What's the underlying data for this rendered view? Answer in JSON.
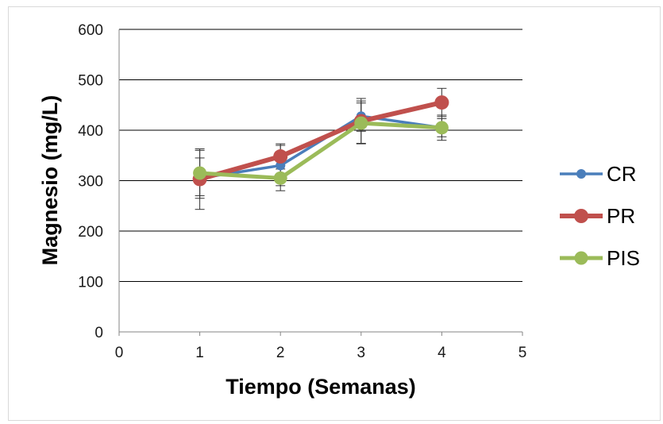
{
  "chart_data": {
    "type": "line",
    "title": "",
    "xlabel": "Tiempo (Semanas)",
    "ylabel": "Magnesio (mg/L)",
    "xlim": [
      0,
      5
    ],
    "ylim": [
      0,
      600
    ],
    "x_ticks": [
      "0",
      "1",
      "2",
      "3",
      "4",
      "5"
    ],
    "y_ticks": [
      "0",
      "100",
      "200",
      "300",
      "400",
      "500",
      "600"
    ],
    "grid": "horizontal",
    "legend": "right",
    "x": [
      1,
      2,
      3,
      4
    ],
    "series": [
      {
        "name": "CR",
        "color": "#4a7ebb",
        "values": [
          305,
          330,
          428,
          405
        ],
        "errors": [
          40,
          40,
          30,
          18
        ]
      },
      {
        "name": "PR",
        "color": "#c0504d",
        "values": [
          303,
          348,
          418,
          455
        ],
        "errors": [
          60,
          25,
          45,
          28
        ]
      },
      {
        "name": "PIS",
        "color": "#9bbb59",
        "values": [
          315,
          305,
          414,
          405
        ],
        "errors": [
          45,
          25,
          40,
          25
        ]
      }
    ]
  }
}
